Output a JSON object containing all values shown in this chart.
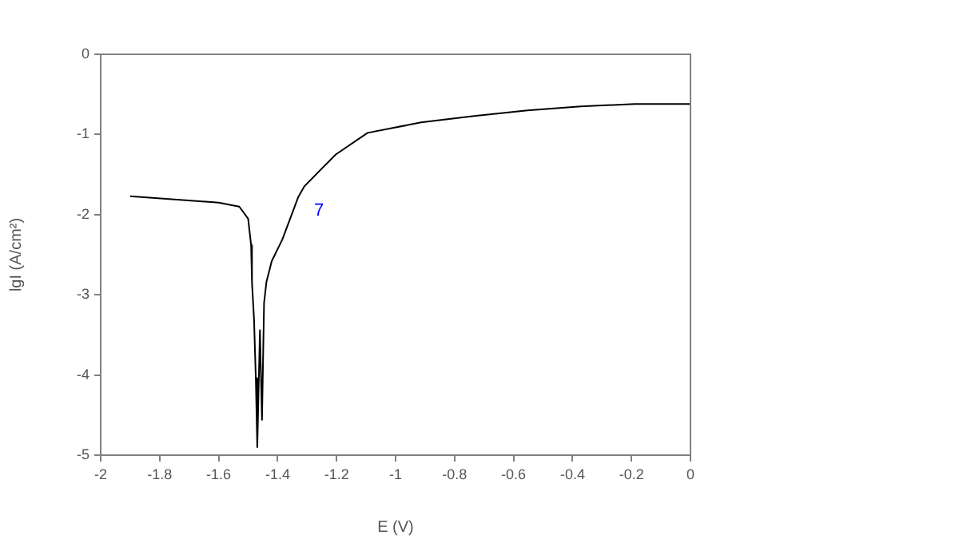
{
  "chart_data": {
    "type": "line",
    "xlabel": "E (V)",
    "ylabel": "lgI (A/cm²)",
    "xlim": [
      -2,
      0
    ],
    "ylim": [
      -5,
      0
    ],
    "xticks": [
      -2,
      -1.8,
      -1.6,
      -1.4,
      -1.2,
      -1,
      -0.8,
      -0.6,
      -0.4,
      -0.2,
      0
    ],
    "yticks": [
      -5,
      -4,
      -3,
      -2,
      -1,
      0
    ],
    "grid": false,
    "legend": false,
    "marker": "none",
    "line_style": "solid",
    "series": [
      {
        "color": "#000000",
        "x": [
          -1.9,
          -1.75,
          -1.6,
          -1.53,
          -1.5,
          -1.49,
          -1.487,
          -1.48,
          -1.474,
          -1.469,
          -1.46,
          -1.453,
          -1.446,
          -1.438,
          -1.42,
          -1.384,
          -1.33,
          -1.31,
          -1.257,
          -1.203,
          -1.095,
          -0.914,
          -0.733,
          -0.553,
          -0.372,
          -0.19,
          0
        ],
        "values": [
          -1.77,
          -1.81,
          -1.85,
          -1.9,
          -2.05,
          -2.38,
          -2.84,
          -3.31,
          -4.04,
          -4.9,
          -3.44,
          -4.56,
          -3.1,
          -2.84,
          -2.58,
          -2.31,
          -1.78,
          -1.65,
          -1.45,
          -1.25,
          -0.98,
          -0.85,
          -0.77,
          -0.7,
          -0.65,
          -0.62,
          -0.62
        ]
      }
    ],
    "annotations": [
      "7"
    ]
  }
}
